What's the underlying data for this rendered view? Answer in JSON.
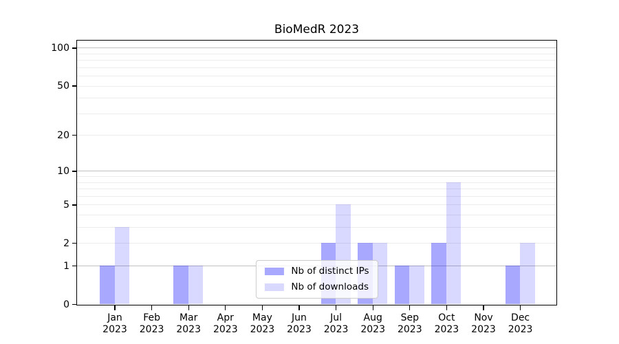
{
  "chart_data": {
    "type": "bar",
    "title": "BioMedR 2023",
    "categories": [
      {
        "month": "Jan",
        "year": "2023"
      },
      {
        "month": "Feb",
        "year": "2023"
      },
      {
        "month": "Mar",
        "year": "2023"
      },
      {
        "month": "Apr",
        "year": "2023"
      },
      {
        "month": "May",
        "year": "2023"
      },
      {
        "month": "Jun",
        "year": "2023"
      },
      {
        "month": "Jul",
        "year": "2023"
      },
      {
        "month": "Aug",
        "year": "2023"
      },
      {
        "month": "Sep",
        "year": "2023"
      },
      {
        "month": "Oct",
        "year": "2023"
      },
      {
        "month": "Nov",
        "year": "2023"
      },
      {
        "month": "Dec",
        "year": "2023"
      }
    ],
    "series": [
      {
        "name": "Nb of distinct IPs",
        "color": "rgba(0,0,255,0.34)",
        "values": [
          1,
          0,
          1,
          0,
          0,
          0,
          2,
          2,
          1,
          2,
          0,
          1
        ]
      },
      {
        "name": "Nb of downloads",
        "color": "rgba(0,0,255,0.15)",
        "values": [
          3,
          0,
          1,
          0,
          0,
          0,
          5,
          2,
          1,
          8,
          0,
          2
        ]
      }
    ],
    "xlabel": "",
    "ylabel": "",
    "y_ticks": [
      0,
      1,
      2,
      5,
      10,
      20,
      50,
      100
    ],
    "ylim": [
      0,
      114
    ],
    "scale": "log1p",
    "grid": true,
    "grid_major_values": [
      1,
      10,
      100
    ],
    "grid_minor_values": [
      2,
      3,
      4,
      5,
      6,
      7,
      8,
      9,
      20,
      30,
      40,
      50,
      60,
      70,
      80,
      90
    ],
    "grid_major_color": "#c0c0c0",
    "grid_minor_color": "#ececec",
    "legend_position": "lower center"
  }
}
